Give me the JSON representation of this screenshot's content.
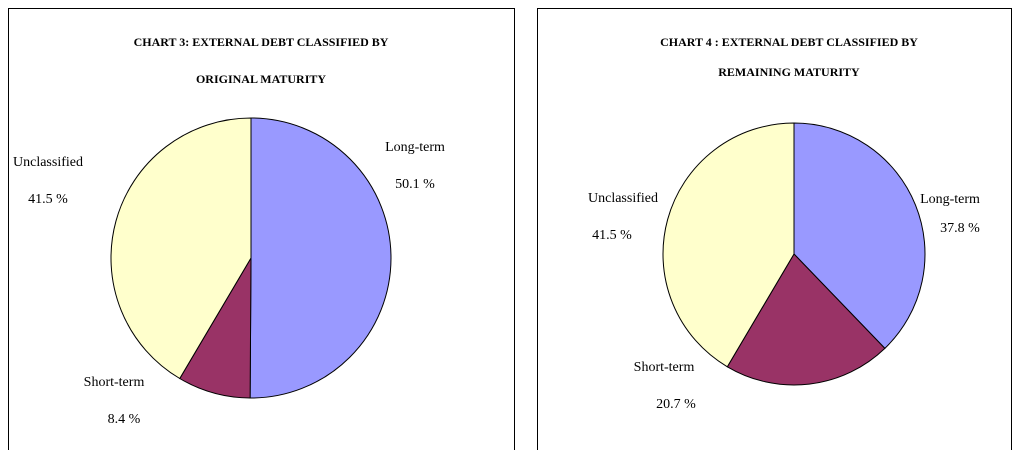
{
  "chart_data": [
    {
      "type": "pie",
      "title": [
        "CHART 3: EXTERNAL DEBT CLASSIFIED BY",
        "ORIGINAL MATURITY"
      ],
      "categories": [
        "Long-term",
        "Short-term",
        "Unclassified"
      ],
      "values": [
        50.1,
        8.4,
        41.5
      ],
      "value_labels": [
        "50.1 %",
        "8.4 %",
        "41.5 %"
      ],
      "colors": [
        "#9999ff",
        "#993366",
        "#ffffcc"
      ]
    },
    {
      "type": "pie",
      "title": [
        "CHART 4 : EXTERNAL DEBT CLASSIFIED BY",
        "REMAINING MATURITY"
      ],
      "categories": [
        "Long-term",
        "Short-term",
        "Unclassified"
      ],
      "values": [
        37.8,
        20.7,
        41.5
      ],
      "value_labels": [
        "37.8 %",
        "20.7 %",
        "41.5 %"
      ],
      "colors": [
        "#9999ff",
        "#993366",
        "#ffffcc"
      ]
    }
  ]
}
